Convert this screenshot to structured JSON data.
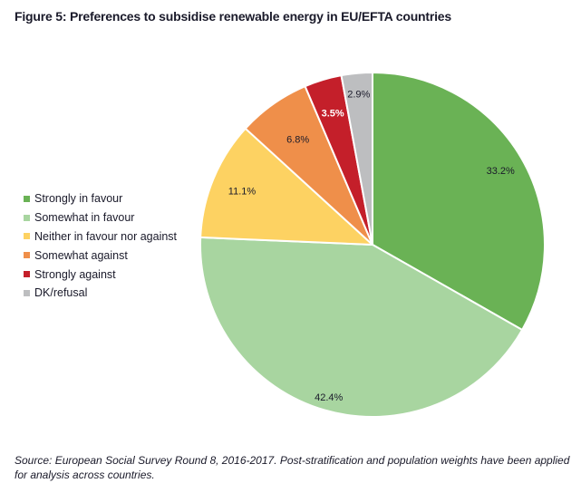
{
  "chart_data": {
    "type": "pie",
    "title": "Figure 5: Preferences to subsidise renewable energy in EU/EFTA countries",
    "legend_position": "left",
    "slices": [
      {
        "label": "Strongly in favour",
        "value": 33.2,
        "text": "33.2%",
        "color": "#6ab255",
        "label_color": "#1a1a2a"
      },
      {
        "label": "Somewhat in favour",
        "value": 42.4,
        "text": "42.4%",
        "color": "#a8d5a0",
        "label_color": "#1a1a2a"
      },
      {
        "label": "Neither in favour nor against",
        "value": 11.1,
        "text": "11.1%",
        "color": "#fdd262",
        "label_color": "#1a1a2a"
      },
      {
        "label": "Somewhat against",
        "value": 6.8,
        "text": "6.8%",
        "color": "#ef8f4a",
        "label_color": "#1a1a2a"
      },
      {
        "label": "Strongly against",
        "value": 3.5,
        "text": "3.5%",
        "color": "#c41f2a",
        "label_color": "#ffffff"
      },
      {
        "label": "DK/refusal",
        "value": 2.9,
        "text": "2.9%",
        "color": "#bdbec0",
        "label_color": "#1a1a2a"
      }
    ]
  },
  "source": "Source: European Social Survey Round 8, 2016-2017. Post-stratification and population weights have been applied for analysis across countries."
}
